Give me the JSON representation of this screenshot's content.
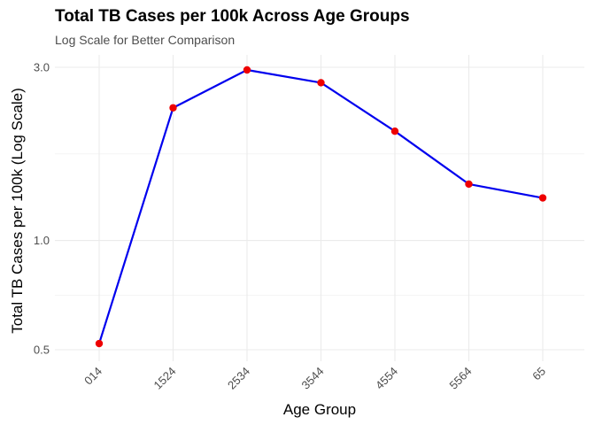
{
  "chart_data": {
    "type": "line",
    "title": "Total TB Cases per 100k Across Age Groups",
    "subtitle": "Log Scale for Better Comparison",
    "xlabel": "Age Group",
    "ylabel": "Total TB Cases per 100k (Log Scale)",
    "yscale": "log",
    "ylim": [
      0.5,
      3.15
    ],
    "yticks": [
      0.5,
      1.0,
      3.0
    ],
    "ytick_labels": [
      "0.5",
      "1.0",
      "3.0"
    ],
    "categories": [
      "014",
      "1524",
      "2534",
      "3544",
      "4554",
      "5564",
      "65"
    ],
    "values": [
      0.52,
      2.32,
      2.95,
      2.72,
      2.0,
      1.43,
      1.31
    ],
    "grid": true,
    "line_color": "#0000ee",
    "point_color": "#ee0000"
  }
}
